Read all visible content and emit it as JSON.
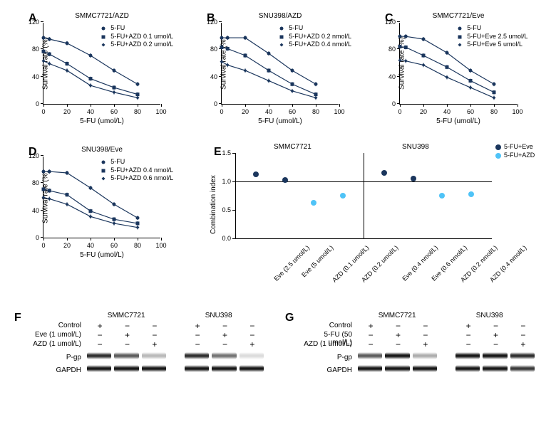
{
  "colors": {
    "series": "#1b365d",
    "ci_eve": "#1b365d",
    "ci_azd": "#4fc3f7",
    "axis": "#000000",
    "bg": "#ffffff"
  },
  "fontsize": {
    "label": 16,
    "axis_title": 10,
    "tick": 9,
    "legend": 9,
    "plot_title": 10
  },
  "line_chart_common": {
    "xlim": [
      0,
      100
    ],
    "ylim": [
      0,
      120
    ],
    "xticks": [
      0,
      20,
      40,
      60,
      80,
      100
    ],
    "yticks": [
      0,
      40,
      80,
      120
    ],
    "xlabel": "5-FU (umol/L)",
    "ylabel": "Survival rate (%)",
    "marker_size": 5,
    "line_width": 1.2,
    "markers": [
      "circle",
      "square",
      "diamond"
    ]
  },
  "panelA": {
    "label": "A",
    "title": "SMMC7721/AZD",
    "x": [
      0,
      5,
      20,
      40,
      60,
      80
    ],
    "series": [
      {
        "name": "5-FU",
        "y": [
          98,
          96,
          90,
          72,
          50,
          30
        ]
      },
      {
        "name": "5-FU+AZD 0.1 umol/L",
        "y": [
          78,
          74,
          60,
          38,
          25,
          15
        ]
      },
      {
        "name": "5-FU+AZD 0.2 umol/L",
        "y": [
          64,
          60,
          50,
          28,
          18,
          10
        ]
      }
    ]
  },
  "panelB": {
    "label": "B",
    "title": "SNU398/AZD",
    "x": [
      0,
      5,
      20,
      40,
      60,
      80
    ],
    "series": [
      {
        "name": "5-FU",
        "y": [
          98,
          98,
          98,
          75,
          50,
          30
        ]
      },
      {
        "name": "5-FU+AZD 0.2 nmol/L",
        "y": [
          84,
          82,
          72,
          50,
          30,
          15
        ]
      },
      {
        "name": "5-FU+AZD 0.4 nmol/L",
        "y": [
          63,
          58,
          50,
          35,
          20,
          10
        ]
      }
    ]
  },
  "panelC": {
    "label": "C",
    "title": "SMMC7721/Eve",
    "x": [
      0,
      5,
      20,
      40,
      60,
      80
    ],
    "series": [
      {
        "name": "5-FU",
        "y": [
          100,
          100,
          96,
          76,
          50,
          30
        ]
      },
      {
        "name": "5-FU+Eve 2.5 umol/L",
        "y": [
          85,
          84,
          72,
          55,
          35,
          18
        ]
      },
      {
        "name": "5-FU+Eve 5 umol/L",
        "y": [
          65,
          64,
          58,
          40,
          25,
          10
        ]
      }
    ]
  },
  "panelD": {
    "label": "D",
    "title": "SNU398/Eve",
    "x": [
      0,
      5,
      20,
      40,
      60,
      80
    ],
    "series": [
      {
        "name": "5-FU",
        "y": [
          98,
          98,
          96,
          74,
          50,
          30
        ]
      },
      {
        "name": "5-FU+AZD 0.4 nmol/L",
        "y": [
          72,
          70,
          64,
          40,
          28,
          22
        ]
      },
      {
        "name": "5-FU+AZD 0.6 nmol/L",
        "y": [
          60,
          58,
          50,
          32,
          22,
          16
        ]
      }
    ]
  },
  "panelE": {
    "label": "E",
    "ylabel": "Combination index",
    "ylim": [
      0.0,
      1.5
    ],
    "yticks": [
      0.0,
      0.5,
      1.0,
      1.5
    ],
    "ref_line": 1.0,
    "groups": [
      {
        "title": "SMMC7721",
        "points": [
          {
            "label": "Eve (2.5 umol/L)",
            "ci": 1.12,
            "kind": "eve"
          },
          {
            "label": "Eve (5 umol/L)",
            "ci": 1.02,
            "kind": "eve"
          },
          {
            "label": "AZD (0.1 umol/L)",
            "ci": 0.62,
            "kind": "azd"
          },
          {
            "label": "AZD (0.2 umol/L)",
            "ci": 0.75,
            "kind": "azd"
          }
        ]
      },
      {
        "title": "SNU398",
        "points": [
          {
            "label": "Eve (0.4 nmol/L)",
            "ci": 1.15,
            "kind": "eve"
          },
          {
            "label": "Eve (0.6 nmol/L)",
            "ci": 1.05,
            "kind": "eve"
          },
          {
            "label": "AZD (0.2 nmol/L)",
            "ci": 0.75,
            "kind": "azd"
          },
          {
            "label": "AZD (0.4 nmol/L)",
            "ci": 0.78,
            "kind": "azd"
          }
        ]
      }
    ],
    "legend": [
      {
        "label": "5-FU+Eve",
        "color_key": "ci_eve"
      },
      {
        "label": "5-FU+AZD",
        "color_key": "ci_azd"
      }
    ]
  },
  "panelF": {
    "label": "F",
    "cell_lines": [
      "SMMC7721",
      "SNU398"
    ],
    "treatments": [
      {
        "name": "Control",
        "pattern": [
          "+",
          "−",
          "−",
          "+",
          "−",
          "−"
        ]
      },
      {
        "name": "Eve (1 umol/L)",
        "pattern": [
          "−",
          "+",
          "−",
          "−",
          "+",
          "−"
        ]
      },
      {
        "name": "AZD (1 umol/L)",
        "pattern": [
          "−",
          "−",
          "+",
          "−",
          "−",
          "+"
        ]
      }
    ],
    "proteins": [
      {
        "name": "P-gp",
        "intensity": [
          0.9,
          0.7,
          0.3,
          0.9,
          0.6,
          0.15
        ]
      },
      {
        "name": "GAPDH",
        "intensity": [
          1,
          1,
          1,
          1,
          1,
          1
        ]
      }
    ]
  },
  "panelG": {
    "label": "G",
    "cell_lines": [
      "SMMC7721",
      "SNU398"
    ],
    "treatments": [
      {
        "name": "Control",
        "pattern": [
          "+",
          "−",
          "−",
          "+",
          "−",
          "−"
        ]
      },
      {
        "name": "5-FU (50 umol/L)",
        "pattern": [
          "−",
          "+",
          "−",
          "−",
          "+",
          "−"
        ]
      },
      {
        "name": "AZD (1 umol/L)",
        "pattern": [
          "−",
          "−",
          "+",
          "−",
          "−",
          "+"
        ]
      }
    ],
    "proteins": [
      {
        "name": "P-gp",
        "intensity": [
          0.7,
          1.0,
          0.35,
          1.0,
          1.1,
          0.9
        ]
      },
      {
        "name": "GAPDH",
        "intensity": [
          1,
          1,
          1,
          1,
          1,
          0.85
        ]
      }
    ]
  }
}
